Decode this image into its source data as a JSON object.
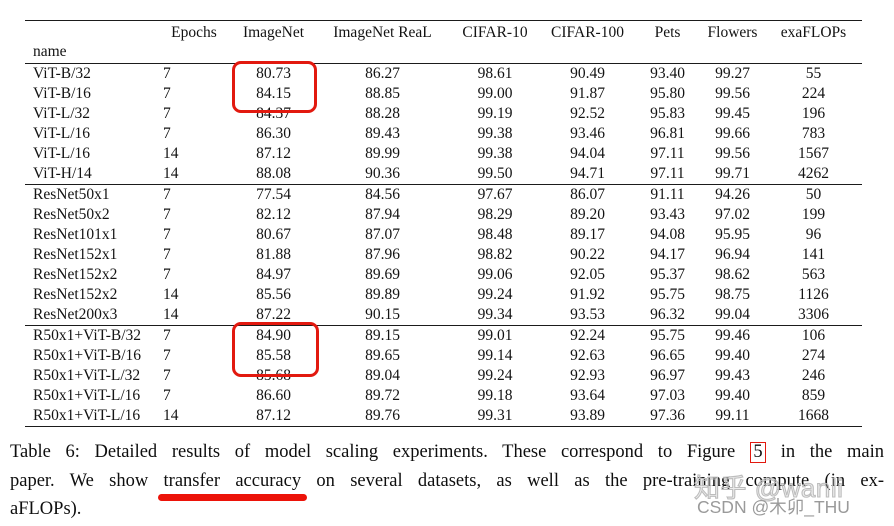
{
  "colors": {
    "annotation_red": "#e2190f",
    "marker_red": "#ec1309",
    "rule_black": "#1b1b1b",
    "watermark_gray": "#9a9a9a"
  },
  "table": {
    "index_label": "name",
    "columns": [
      "Epochs",
      "ImageNet",
      "ImageNet ReaL",
      "CIFAR-10",
      "CIFAR-100",
      "Pets",
      "Flowers",
      "exaFLOPs"
    ],
    "groups": [
      {
        "rows": [
          [
            "ViT-B/32",
            "7",
            "80.73",
            "86.27",
            "98.61",
            "90.49",
            "93.40",
            "99.27",
            "55"
          ],
          [
            "ViT-B/16",
            "7",
            "84.15",
            "88.85",
            "99.00",
            "91.87",
            "95.80",
            "99.56",
            "224"
          ],
          [
            "ViT-L/32",
            "7",
            "84.37",
            "88.28",
            "99.19",
            "92.52",
            "95.83",
            "99.45",
            "196"
          ],
          [
            "ViT-L/16",
            "7",
            "86.30",
            "89.43",
            "99.38",
            "93.46",
            "96.81",
            "99.66",
            "783"
          ],
          [
            "ViT-L/16",
            "14",
            "87.12",
            "89.99",
            "99.38",
            "94.04",
            "97.11",
            "99.56",
            "1567"
          ],
          [
            "ViT-H/14",
            "14",
            "88.08",
            "90.36",
            "99.50",
            "94.71",
            "97.11",
            "99.71",
            "4262"
          ]
        ]
      },
      {
        "rows": [
          [
            "ResNet50x1",
            "7",
            "77.54",
            "84.56",
            "97.67",
            "86.07",
            "91.11",
            "94.26",
            "50"
          ],
          [
            "ResNet50x2",
            "7",
            "82.12",
            "87.94",
            "98.29",
            "89.20",
            "93.43",
            "97.02",
            "199"
          ],
          [
            "ResNet101x1",
            "7",
            "80.67",
            "87.07",
            "98.48",
            "89.17",
            "94.08",
            "95.95",
            "96"
          ],
          [
            "ResNet152x1",
            "7",
            "81.88",
            "87.96",
            "98.82",
            "90.22",
            "94.17",
            "96.94",
            "141"
          ],
          [
            "ResNet152x2",
            "7",
            "84.97",
            "89.69",
            "99.06",
            "92.05",
            "95.37",
            "98.62",
            "563"
          ],
          [
            "ResNet152x2",
            "14",
            "85.56",
            "89.89",
            "99.24",
            "91.92",
            "95.75",
            "98.75",
            "1126"
          ],
          [
            "ResNet200x3",
            "14",
            "87.22",
            "90.15",
            "99.34",
            "93.53",
            "96.32",
            "99.04",
            "3306"
          ]
        ]
      },
      {
        "rows": [
          [
            "R50x1+ViT-B/32",
            "7",
            "84.90",
            "89.15",
            "99.01",
            "92.24",
            "95.75",
            "99.46",
            "106"
          ],
          [
            "R50x1+ViT-B/16",
            "7",
            "85.58",
            "89.65",
            "99.14",
            "92.63",
            "96.65",
            "99.40",
            "274"
          ],
          [
            "R50x1+ViT-L/32",
            "7",
            "85.68",
            "89.04",
            "99.24",
            "92.93",
            "96.97",
            "99.43",
            "246"
          ],
          [
            "R50x1+ViT-L/16",
            "7",
            "86.60",
            "89.72",
            "99.18",
            "93.64",
            "97.03",
            "99.40",
            "859"
          ],
          [
            "R50x1+ViT-L/16",
            "14",
            "87.12",
            "89.76",
            "99.31",
            "93.89",
            "97.36",
            "99.11",
            "1668"
          ]
        ]
      }
    ]
  },
  "caption": {
    "seg1": "Table 6: Detailed results of model scaling experiments. These correspond to Figure",
    "figure_ref": "5",
    "seg2": "in the main",
    "seg3": "paper. We show",
    "underlined": "transfer accuracy",
    "seg4": "on several datasets, as well as the pre-training compute (in ex-",
    "seg5": "aFLOPs)."
  },
  "watermarks": {
    "zhihu": "知乎 @wanli",
    "csdn": "CSDN @木卯_THU"
  }
}
